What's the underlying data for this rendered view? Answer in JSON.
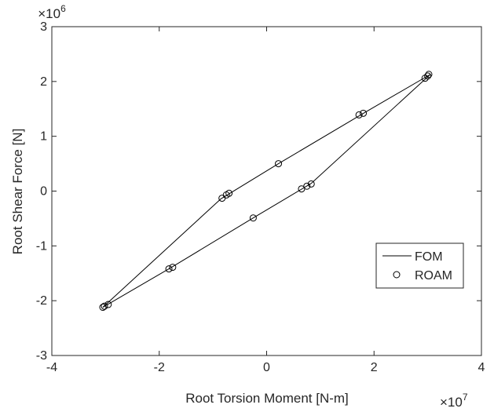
{
  "chart_data": {
    "type": "line",
    "xlabel": "Root Torsion Moment [N-m]",
    "ylabel": "Root Shear Force [N]",
    "xlim": [
      -4,
      4
    ],
    "ylim": [
      -3,
      3
    ],
    "x_ticks": [
      "-4",
      "-2",
      "0",
      "2",
      "4"
    ],
    "y_ticks": [
      "-3",
      "-2",
      "-1",
      "0",
      "1",
      "2",
      "3"
    ],
    "x_multiplier": {
      "base": "×10",
      "exponent": "7"
    },
    "y_multiplier": {
      "base": "×10",
      "exponent": "6"
    },
    "grid": false,
    "legend_position": "bottom-right",
    "series": [
      {
        "name": "FOM",
        "style": "solid-line",
        "color": "#000000",
        "points": [
          [
            3.05,
            2.13
          ],
          [
            1.82,
            1.43
          ],
          [
            0.22,
            0.5
          ],
          [
            -0.85,
            -0.14
          ],
          [
            -3.05,
            -2.12
          ],
          [
            -1.77,
            -1.39
          ],
          [
            -0.25,
            -0.49
          ],
          [
            0.83,
            0.14
          ],
          [
            3.05,
            2.13
          ]
        ]
      },
      {
        "name": "ROAM",
        "style": "open-circle",
        "color": "#000000",
        "points": [
          [
            3.02,
            2.13
          ],
          [
            3.0,
            2.1
          ],
          [
            2.95,
            2.06
          ],
          [
            1.8,
            1.42
          ],
          [
            1.72,
            1.39
          ],
          [
            0.22,
            0.5
          ],
          [
            -0.7,
            -0.04
          ],
          [
            -0.75,
            -0.07
          ],
          [
            -0.83,
            -0.13
          ],
          [
            -3.05,
            -2.12
          ],
          [
            -3.02,
            -2.1
          ],
          [
            -2.95,
            -2.07
          ],
          [
            -1.82,
            -1.42
          ],
          [
            -1.75,
            -1.39
          ],
          [
            -0.25,
            -0.49
          ],
          [
            0.65,
            0.04
          ],
          [
            0.75,
            0.09
          ],
          [
            0.83,
            0.13
          ]
        ]
      }
    ]
  }
}
